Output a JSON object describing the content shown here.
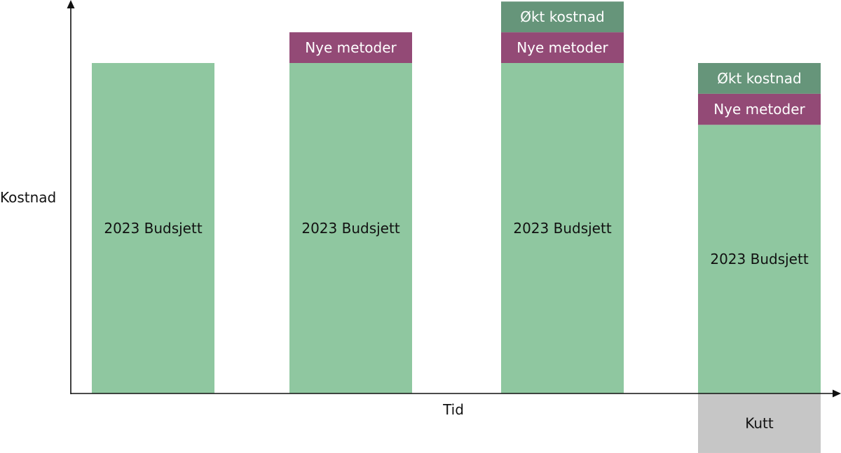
{
  "chart_data": {
    "type": "bar",
    "stacked": true,
    "xlabel": "Tid",
    "ylabel": "Kostnad",
    "categories": [
      "",
      "",
      "",
      ""
    ],
    "grid": false,
    "colors": {
      "budget": "#8fc7a0",
      "methods": "#934a76",
      "increase": "#66957a",
      "cut": "#c6c6c6",
      "axis": "#111111",
      "dark_text": "#111111",
      "light_text": "#ffffff"
    },
    "bars": [
      {
        "segments": [
          {
            "label": "2023 Budsjett",
            "start": 0,
            "value": 100,
            "color_key": "budget"
          }
        ]
      },
      {
        "segments": [
          {
            "label": "2023 Budsjett",
            "start": 0,
            "value": 100,
            "color_key": "budget"
          },
          {
            "label": "Nye metoder",
            "start": 100,
            "value": 9.3,
            "color_key": "methods"
          }
        ]
      },
      {
        "segments": [
          {
            "label": "2023 Budsjett",
            "start": 0,
            "value": 100,
            "color_key": "budget"
          },
          {
            "label": "Nye metoder",
            "start": 100,
            "value": 9.3,
            "color_key": "methods"
          },
          {
            "label": "Økt kostnad",
            "start": 109.3,
            "value": 9.3,
            "color_key": "increase"
          }
        ]
      },
      {
        "segments": [
          {
            "label": "Kutt",
            "start": -18,
            "value": 18,
            "color_key": "cut"
          },
          {
            "label": "2023 Budsjett",
            "start": 0,
            "value": 81.3,
            "color_key": "budget"
          },
          {
            "label": "Nye metoder",
            "start": 81.3,
            "value": 9.4,
            "color_key": "methods"
          },
          {
            "label": "Økt kostnad",
            "start": 90.7,
            "value": 9.3,
            "color_key": "increase"
          }
        ]
      }
    ]
  }
}
